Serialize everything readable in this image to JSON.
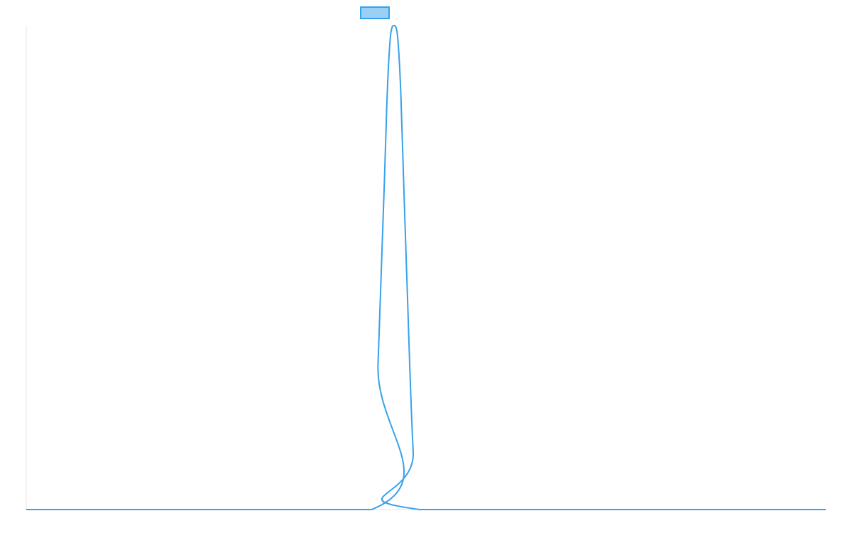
{
  "chart_data": {
    "type": "line",
    "title": "",
    "xlabel": "",
    "ylabel": "",
    "grid": false,
    "legend": {
      "position": "top-center",
      "entries": [
        {
          "label": "",
          "color": "#36a2eb",
          "fill": "#9ad0f5"
        }
      ]
    },
    "xlim": [
      0,
      100
    ],
    "ylim": [
      0,
      1
    ],
    "series": [
      {
        "color": "#36a2eb",
        "x": [
          0,
          43.2,
          44.0,
          44.8,
          45.2,
          45.6,
          46.0,
          46.4,
          46.8,
          47.2,
          47.6,
          48.4,
          49.2,
          100
        ],
        "y": [
          0,
          0,
          0.3,
          0.68,
          0.88,
          0.985,
          1.0,
          0.985,
          0.88,
          0.68,
          0.48,
          0.12,
          0,
          0
        ]
      }
    ]
  }
}
